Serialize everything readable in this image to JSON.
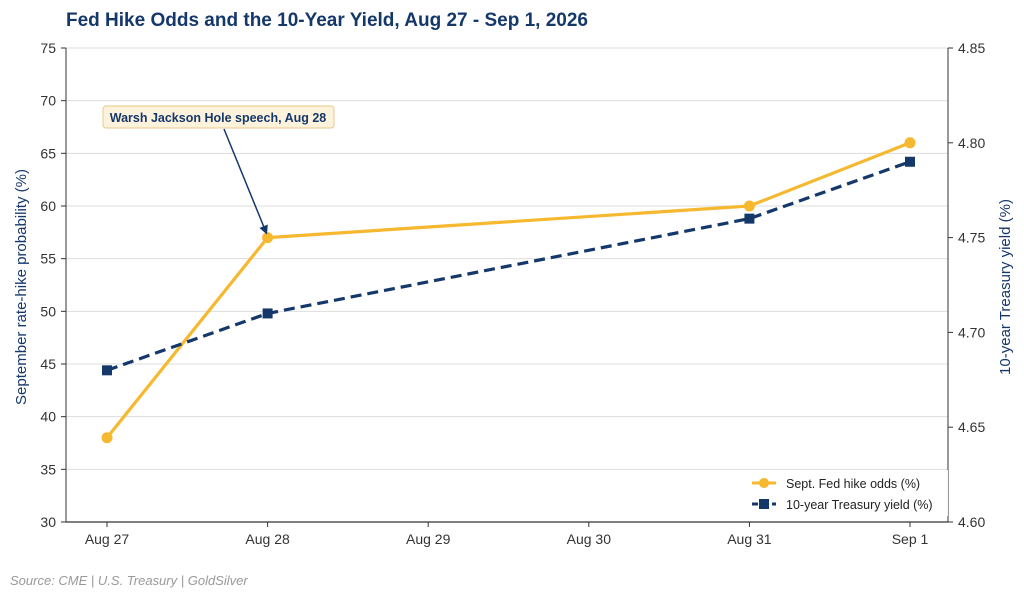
{
  "chart_data": {
    "type": "line",
    "title": "Fed Hike Odds and the 10-Year Yield, Aug 27 - Sep 1, 2026",
    "categories": [
      "Aug 27",
      "Aug 28",
      "Aug 29",
      "Aug 30",
      "Aug 31",
      "Sep 1"
    ],
    "ylabel": "September rate-hike probability (%)",
    "y2label": "10-year Treasury yield (%)",
    "ylim": [
      30,
      75
    ],
    "y2lim": [
      4.6,
      4.85
    ],
    "yticks": [
      "30",
      "35",
      "40",
      "45",
      "50",
      "55",
      "60",
      "65",
      "70",
      "75"
    ],
    "y2ticks": [
      "4.60",
      "4.65",
      "4.70",
      "4.75",
      "4.80",
      "4.85"
    ],
    "grid": true,
    "legend_position": "bottom-right",
    "series": [
      {
        "name": "Sept. Fed hike odds (%)",
        "axis": "left",
        "color": "#f5b82e",
        "marker": "circle",
        "style": "solid",
        "points": [
          {
            "x": "Aug 27",
            "y": 38
          },
          {
            "x": "Aug 28",
            "y": 57
          },
          {
            "x": "Aug 31",
            "y": 60
          },
          {
            "x": "Sep 1",
            "y": 66
          }
        ]
      },
      {
        "name": "10-year Treasury yield (%)",
        "axis": "right",
        "color": "#15386b",
        "marker": "square",
        "style": "dashed",
        "points": [
          {
            "x": "Aug 27",
            "y": 4.68
          },
          {
            "x": "Aug 28",
            "y": 4.71
          },
          {
            "x": "Aug 31",
            "y": 4.76
          },
          {
            "x": "Sep 1",
            "y": 4.79
          }
        ]
      }
    ],
    "annotation": {
      "text": "Warsh Jackson Hole speech, Aug 28",
      "target_x": "Aug 28",
      "target_y": 57
    }
  },
  "source": "Source: CME | U.S. Treasury | GoldSilver",
  "colors": {
    "title": "#15386b",
    "grid": "#dddddd",
    "annotation_bg": "#fdf3dc",
    "annotation_border": "#e6c98a"
  }
}
